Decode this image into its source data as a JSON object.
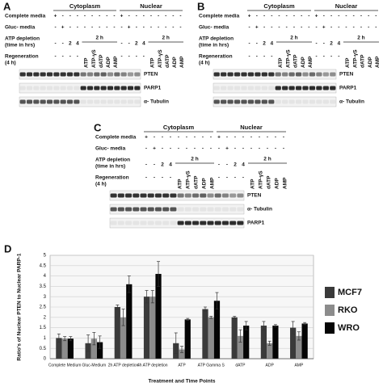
{
  "panels": [
    {
      "letter": "A",
      "compartments": [
        "Cytoplasm",
        "Nuclear"
      ],
      "rows": [
        {
          "label": [
            "Complete media"
          ],
          "cells": [
            [
              "+",
              "-",
              "-",
              "-",
              "-",
              "-",
              "-",
              "-",
              "-"
            ],
            [
              "+",
              "-",
              "-",
              "-",
              "-",
              "-",
              "-",
              "-",
              "-"
            ]
          ]
        },
        {
          "label": [
            "Gluc- media"
          ],
          "cells": [
            [
              "-",
              "+",
              "-",
              "-",
              "-",
              "-",
              "-",
              "-",
              "-"
            ],
            [
              "-",
              "+",
              "-",
              "-",
              "-",
              "-",
              "-",
              "-",
              "-"
            ]
          ]
        },
        {
          "label": [
            "ATP depletion",
            "(time in hrs)"
          ],
          "cells": [
            [
              "-",
              "-",
              "2",
              "4",
              "2 h"
            ],
            [
              "-",
              "-",
              "2",
              "4",
              "2 h"
            ]
          ]
        },
        {
          "label": [
            "Regeneration",
            "(4 h)"
          ],
          "cells": [
            [
              "-",
              "-",
              "-",
              "-",
              "ATP",
              "ATP-γS",
              "dATP",
              "ADP",
              "AMP"
            ],
            [
              "-",
              "-",
              "-",
              "-",
              "ATP",
              "ATP-γS",
              "dATP",
              "ADP",
              "AMP"
            ]
          ]
        }
      ],
      "blots": [
        "PTEN",
        "PARP1",
        "α- Tubulin"
      ]
    },
    {
      "letter": "B",
      "compartments": [
        "Cytoplasm",
        "Nuclear"
      ],
      "rows": [
        {
          "label": [
            "Complete media"
          ],
          "cells": [
            [
              "+",
              "-",
              "-",
              "-",
              "-",
              "-",
              "-",
              "-",
              "-"
            ],
            [
              "+",
              "-",
              "-",
              "-",
              "-",
              "-",
              "-",
              "-",
              "-"
            ]
          ]
        },
        {
          "label": [
            "Gluc- media"
          ],
          "cells": [
            [
              "-",
              "+",
              "-",
              "-",
              "-",
              "-",
              "-",
              "-",
              "-"
            ],
            [
              "-",
              "+",
              "-",
              "-",
              "-",
              "-",
              "-",
              "-",
              "-"
            ]
          ]
        },
        {
          "label": [
            "ATP depletion",
            "(time in hrs)"
          ],
          "cells": [
            [
              "-",
              "-",
              "2",
              "4",
              "2 h"
            ],
            [
              "-",
              "-",
              "2",
              "4",
              "2 h"
            ]
          ]
        },
        {
          "label": [
            "Regeneration",
            "(4 h)"
          ],
          "cells": [
            [
              "-",
              "-",
              "-",
              "-",
              "ATP",
              "ATP-γS",
              "dATP",
              "ADP",
              "AMP"
            ],
            [
              "-",
              "-",
              "-",
              "-",
              "ATP",
              "ATP-γS",
              "dATP",
              "ADP",
              "AMP"
            ]
          ]
        }
      ],
      "blots": [
        "PTEN",
        "PARP1",
        "α- Tubulin"
      ]
    },
    {
      "letter": "C",
      "compartments": [
        "Cytoplasm",
        "Nuclear"
      ],
      "rows": [
        {
          "label": [
            "Complete media"
          ],
          "cells": [
            [
              "+",
              "-",
              "-",
              "-",
              "-",
              "-",
              "-",
              "-",
              "-"
            ],
            [
              "+",
              "-",
              "-",
              "-",
              "-",
              "-",
              "-",
              "-",
              "-"
            ]
          ]
        },
        {
          "label": [
            "Gluc- media"
          ],
          "cells": [
            [
              "-",
              "+",
              "-",
              "-",
              "-",
              "-",
              "-",
              "-",
              "-"
            ],
            [
              "-",
              "+",
              "-",
              "-",
              "-",
              "-",
              "-",
              "-",
              "-"
            ]
          ]
        },
        {
          "label": [
            "ATP depletion",
            "(time in hrs)"
          ],
          "cells": [
            [
              "-",
              "-",
              "2",
              "4",
              "2 h"
            ],
            [
              "-",
              "-",
              "2",
              "4",
              "2 h"
            ]
          ]
        },
        {
          "label": [
            "Regeneration",
            "(4 h)"
          ],
          "cells": [
            [
              "-",
              "-",
              "-",
              "-",
              "ATP",
              "ATP-γS",
              "dATP",
              "ADP",
              "AMP"
            ],
            [
              "-",
              "-",
              "-",
              "-",
              "ATP",
              "ATP-γS",
              "dATP",
              "ADP",
              "AMP"
            ]
          ]
        }
      ],
      "blots": [
        "PTEN",
        "α- Tubulin",
        "PARP1"
      ]
    }
  ],
  "chart_data": {
    "type": "bar",
    "letter": "D",
    "ylabel": "Ratio's of Nuclear PTEN to Nuclear PARP-1",
    "xlabel": "Treatment and Time Points",
    "categories": [
      "Complete Medium",
      "Gluc-Medium",
      "2h ATP depletion",
      "4h ATP depletion",
      "ATP",
      "ATP Gamma S",
      "dATP",
      "ADP",
      "AMP"
    ],
    "series": [
      {
        "name": "MCF7",
        "color": "#3a3a3a",
        "values": [
          1.0,
          0.75,
          2.5,
          3.0,
          0.75,
          2.4,
          2.0,
          1.6,
          1.5
        ],
        "errors": [
          0.2,
          0.4,
          0.1,
          0.3,
          0.5,
          0.1,
          0.05,
          0.2,
          0.3
        ]
      },
      {
        "name": "RKO",
        "color": "#8c8c8c",
        "values": [
          0.97,
          0.97,
          2.0,
          3.0,
          0.45,
          2.0,
          1.1,
          0.75,
          1.1
        ],
        "errors": [
          0.1,
          0.3,
          0.4,
          0.3,
          0.15,
          0.05,
          0.3,
          0.1,
          0.2
        ]
      },
      {
        "name": "WRO",
        "color": "#050505",
        "values": [
          0.97,
          0.8,
          3.6,
          4.1,
          1.9,
          2.8,
          1.6,
          1.6,
          1.7
        ],
        "errors": [
          0.1,
          0.3,
          0.4,
          0.6,
          0.05,
          0.4,
          0.2,
          0.05,
          0.05
        ]
      }
    ],
    "ylim": [
      0,
      5
    ],
    "yticks": [
      0,
      0.5,
      1,
      1.5,
      2,
      2.5,
      3,
      3.5,
      4,
      4.5,
      5
    ],
    "grid": true,
    "legend": "right"
  }
}
